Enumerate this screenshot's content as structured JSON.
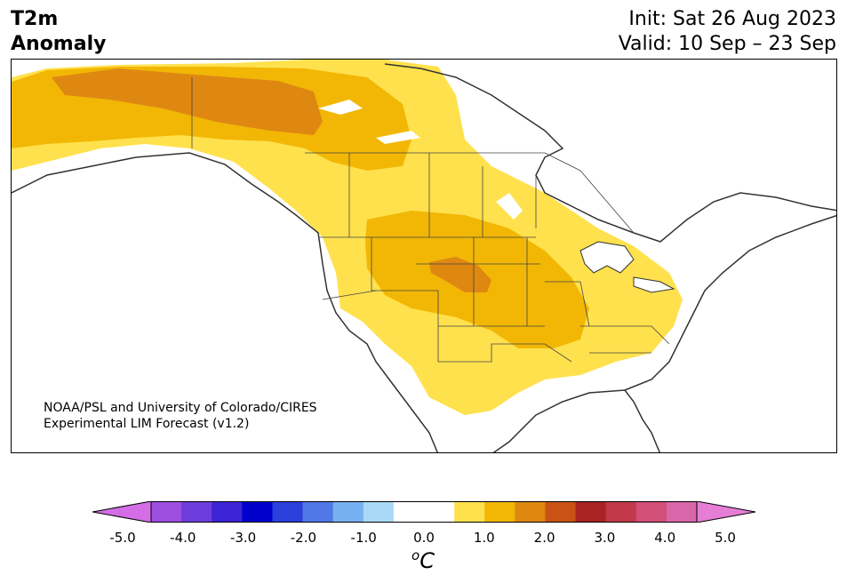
{
  "header": {
    "title_line1": "T2m",
    "title_line2": "Anomaly",
    "init": "Init: Sat 26 Aug 2023",
    "valid": "Valid: 10 Sep – 23 Sep"
  },
  "credit": {
    "line1": "NOAA/PSL and University of Colorado/CIRES",
    "line2": "Experimental LIM Forecast (v1.2)"
  },
  "colorbar": {
    "colors": [
      "#d36ee6",
      "#9d4fe0",
      "#6d3ddb",
      "#3c24d4",
      "#0000cc",
      "#2b3fdb",
      "#5078e6",
      "#76b0f0",
      "#aad9f7",
      "#ffffff",
      "#ffffff",
      "#ffe14d",
      "#f2b705",
      "#de8812",
      "#c95214",
      "#a82424",
      "#c23a4a",
      "#d14f78",
      "#d966a8",
      "#e67ed6"
    ],
    "tick_labels": [
      "-5.0",
      "-4.0",
      "-3.0",
      "-2.0",
      "-1.0",
      "0.0",
      "1.0",
      "2.0",
      "3.0",
      "4.0",
      "5.0"
    ],
    "units_base": "C",
    "units_sup": "o"
  },
  "map": {
    "shading_colors": {
      "light": "#ffe14d",
      "medium": "#f2b705",
      "dark": "#de8812"
    }
  }
}
